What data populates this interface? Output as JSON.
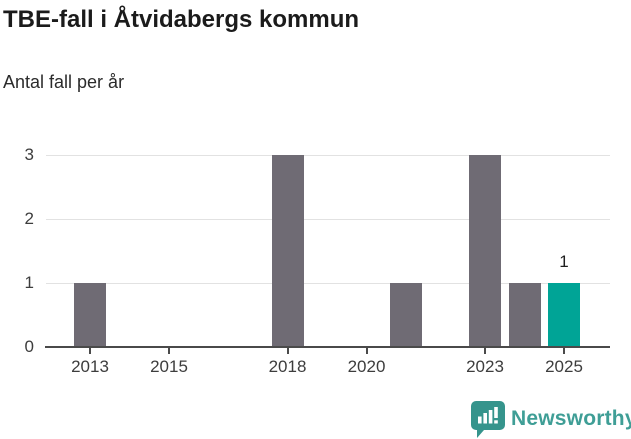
{
  "chart_data": {
    "type": "bar",
    "title": "TBE-fall i Åtvidabergs kommun",
    "subtitle": "Antal fall per år",
    "categories": [
      "2013",
      "2014",
      "2015",
      "2016",
      "2017",
      "2018",
      "2019",
      "2020",
      "2021",
      "2022",
      "2023",
      "2024",
      "2025"
    ],
    "values": [
      1,
      0,
      0,
      0,
      0,
      3,
      0,
      0,
      1,
      0,
      3,
      1,
      1
    ],
    "x_tick_labels": [
      "2013",
      "2015",
      "2018",
      "2020",
      "2023",
      "2025"
    ],
    "y_ticks": [
      0,
      1,
      2,
      3
    ],
    "ylim": [
      0,
      3
    ],
    "grid": true,
    "legend": "none",
    "highlight": {
      "category": "2025",
      "value_label": "1"
    },
    "colors": {
      "bar": "#6f6b74",
      "highlight": "#00a496",
      "gridline": "#e2e2e2",
      "axis": "#4a4a4a",
      "tick_label": "#3d3d3d",
      "value_label": "#1f1f1f"
    }
  },
  "branding": {
    "logo_text": "Newsworthy",
    "logo_text_color": "#3f9e96",
    "logo_icon": "newsworthy-speech-bubble-chart-icon",
    "logo_icon_color": "#35948c"
  }
}
